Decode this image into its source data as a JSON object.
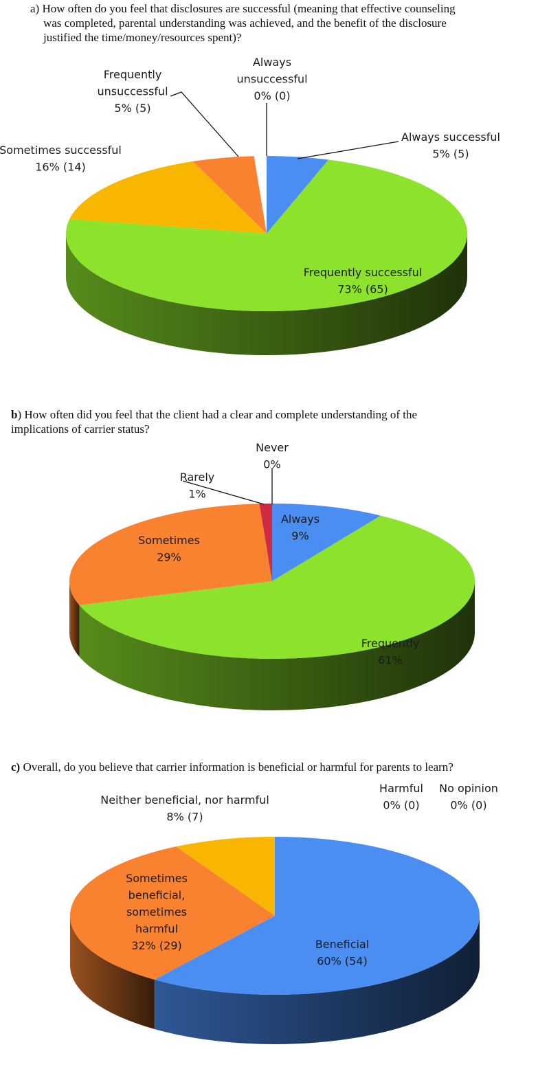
{
  "chart_data": [
    {
      "type": "pie",
      "title": "How often do you feel that disclosures are successful (meaning that effective counseling was completed, parental understanding was achieved, and the benefit of the disclosure justified the time/money/resources spent)?",
      "panel": "a",
      "slices": [
        {
          "name": "Always successful",
          "percent": 5,
          "count": 5,
          "label_line1": "Always successful",
          "label_value": "5% (5)",
          "color": "#4a8ef2"
        },
        {
          "name": "Frequently successful",
          "percent": 73,
          "count": 65,
          "label_line1": "Frequently successful",
          "label_value": "73% (65)",
          "color": "#8de22b"
        },
        {
          "name": "Sometimes successful",
          "percent": 16,
          "count": 14,
          "label_line1": "Sometimes successful",
          "label_value": "16% (14)",
          "color": "#f8b600"
        },
        {
          "name": "Frequently unsuccessful",
          "percent": 5,
          "count": 5,
          "label_line1": "Frequently",
          "label_line2": "unsuccessful",
          "label_value": "5% (5)",
          "color": "#f98231"
        },
        {
          "name": "Always unsuccessful",
          "percent": 0,
          "count": 0,
          "label_line1": "Always",
          "label_line2": "unsuccessful",
          "label_value": "0% (0)",
          "color": "#d03040"
        }
      ]
    },
    {
      "type": "pie",
      "title": "How often did you feel that the client had a clear and complete understanding of the implications of carrier status?",
      "panel": "b",
      "slices": [
        {
          "name": "Always",
          "percent": 9,
          "label_line1": "Always",
          "label_value": "9%",
          "color": "#4a8ef2"
        },
        {
          "name": "Frequently",
          "percent": 61,
          "label_line1": "Frequently",
          "label_value": "61%",
          "color": "#8de22b"
        },
        {
          "name": "Sometimes",
          "percent": 29,
          "label_line1": "Sometimes",
          "label_value": "29%",
          "color": "#f98231"
        },
        {
          "name": "Rarely",
          "percent": 1,
          "label_line1": "Rarely",
          "label_value": "1%",
          "color": "#d12b43"
        },
        {
          "name": "Never",
          "percent": 0,
          "label_line1": "Never",
          "label_value": "0%",
          "color": "#444444"
        }
      ]
    },
    {
      "type": "pie",
      "title": "Overall, do you believe that carrier information is beneficial or harmful for parents to learn?",
      "panel": "c",
      "slices": [
        {
          "name": "Beneficial",
          "percent": 60,
          "count": 54,
          "label_line1": "Beneficial",
          "label_value": "60% (54)",
          "color": "#4a8ef2"
        },
        {
          "name": "Sometimes beneficial, sometimes harmful",
          "percent": 32,
          "count": 29,
          "label_line1": "Sometimes",
          "label_line2": "beneficial,",
          "label_line3": "sometimes",
          "label_line4": "harmful",
          "label_value": "32% (29)",
          "color": "#f98231"
        },
        {
          "name": "Neither beneficial, nor harmful",
          "percent": 8,
          "count": 7,
          "label_line1": "Neither beneficial, nor harmful",
          "label_value": "8% (7)",
          "color": "#f8b600"
        },
        {
          "name": "Harmful",
          "percent": 0,
          "count": 0,
          "label_line1": "Harmful",
          "label_value": "0% (0)",
          "color": "#d03040"
        },
        {
          "name": "No opinion",
          "percent": 0,
          "count": 0,
          "label_line1": "No opinion",
          "label_value": "0% (0)",
          "color": "#888888"
        }
      ]
    }
  ],
  "questions": {
    "a": {
      "letter": "a)",
      "text_1": "How often do you feel that disclosures are successful (meaning that effective counseling",
      "text_2": "was completed, parental understanding was achieved, and the benefit of the disclosure",
      "text_3": "justified the time/money/resources spent)?"
    },
    "b": {
      "letter": "b",
      "letter_suffix": ")",
      "text_1": " How often did you feel that the client had a clear and complete understanding of the",
      "text_2": "implications of carrier status?"
    },
    "c": {
      "letter": "c)",
      "text_1": " Overall, do you believe that carrier information is beneficial or harmful for parents to learn?"
    }
  }
}
